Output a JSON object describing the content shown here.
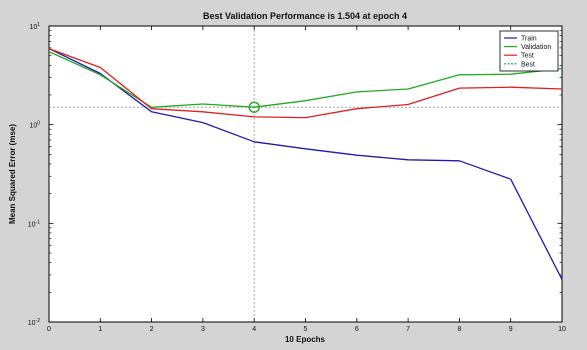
{
  "chart_data": {
    "type": "line",
    "title": "Best Validation Performance is 1.504 at epoch 4",
    "xlabel": "10 Epochs",
    "ylabel": "Mean Squared Error  (mse)",
    "xlim": [
      0,
      10
    ],
    "ylim": [
      0.01,
      10
    ],
    "yscale": "log",
    "x_ticks": [
      "0",
      "1",
      "2",
      "3",
      "4",
      "5",
      "6",
      "7",
      "8",
      "9",
      "10"
    ],
    "y_ticks": [
      {
        "base": "10",
        "exp": "1",
        "value": 10
      },
      {
        "base": "10",
        "exp": "0",
        "value": 1
      },
      {
        "base": "10",
        "exp": "-1",
        "value": 0.1
      },
      {
        "base": "10",
        "exp": "-2",
        "value": 0.01
      }
    ],
    "grid": false,
    "legend_position": "top-right",
    "series": [
      {
        "name": "Train",
        "color": "#1c1cb0",
        "x": [
          0,
          1,
          2,
          3,
          4,
          5,
          6,
          7,
          8,
          9,
          10
        ],
        "y": [
          5.9,
          3.3,
          1.35,
          1.05,
          0.67,
          0.57,
          0.49,
          0.44,
          0.43,
          0.28,
          0.027
        ]
      },
      {
        "name": "Validation",
        "color": "#22aa22",
        "x": [
          0,
          1,
          2,
          3,
          4,
          5,
          6,
          7,
          8,
          9,
          10
        ],
        "y": [
          5.5,
          3.2,
          1.5,
          1.62,
          1.504,
          1.75,
          2.15,
          2.3,
          3.2,
          3.25,
          3.7
        ]
      },
      {
        "name": "Test",
        "color": "#e02020",
        "x": [
          0,
          1,
          2,
          3,
          4,
          5,
          6,
          7,
          8,
          9,
          10
        ],
        "y": [
          5.9,
          3.8,
          1.45,
          1.35,
          1.2,
          1.18,
          1.45,
          1.6,
          2.35,
          2.4,
          2.3
        ]
      }
    ],
    "best": {
      "name": "Best",
      "epoch": 4,
      "value": 1.504,
      "color": "#22aa22",
      "line_color": "#999999"
    }
  }
}
